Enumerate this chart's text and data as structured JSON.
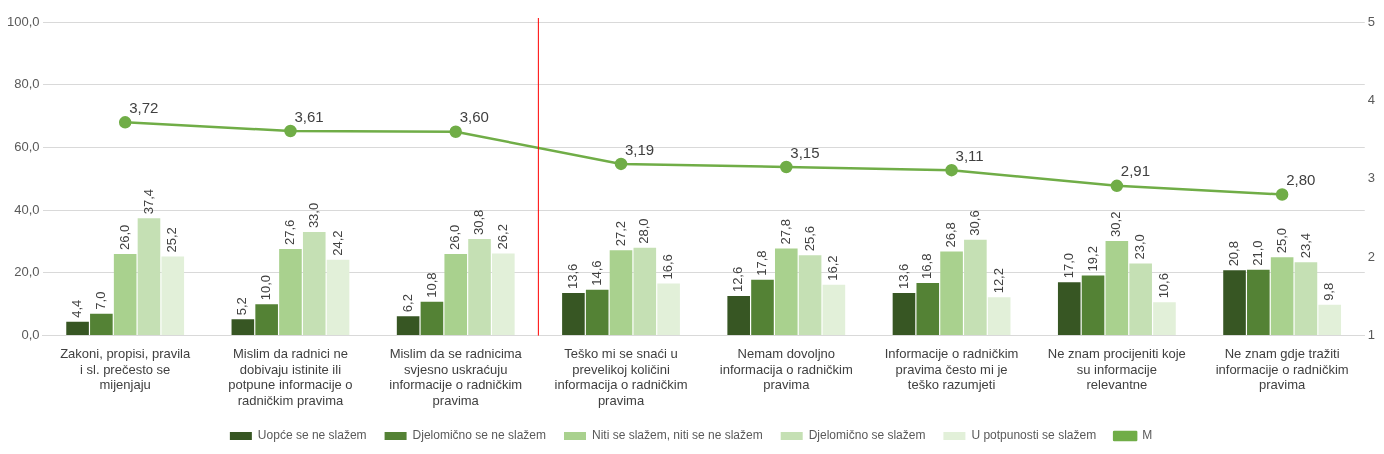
{
  "chart_data": {
    "type": "bar",
    "categories": [
      "Zakoni, propisi, pravila i sl. prečesto se mijenjaju",
      "Mislim da radnici ne dobivaju istinite ili potpune informacije o radničkim pravima",
      "Mislim da se radnicima svjesno uskraćuju informacije o radničkim pravima",
      "Teško mi se snaći u prevelikoj količini informacija o radničkim pravima",
      "Nemam dovoljno informacija o radničkim pravima",
      "Informacije o radničkim pravima često mi je teško razumjeti",
      "Ne znam procijeniti koje su informacije relevantne",
      "Ne znam gdje tražiti informacije o radničkim pravima"
    ],
    "series": [
      {
        "name": "Uopće se ne slažem",
        "color": "#375623",
        "values": [
          4.4,
          5.2,
          6.2,
          13.6,
          12.6,
          13.6,
          17.0,
          20.8
        ],
        "value_labels": [
          "4,4",
          "5,2",
          "6,2",
          "13,6",
          "12,6",
          "13,6",
          "17,0",
          "20,8"
        ]
      },
      {
        "name": "Djelomično se ne slažem",
        "color": "#548235",
        "values": [
          7.0,
          10.0,
          10.8,
          14.6,
          17.8,
          16.8,
          19.2,
          21.0
        ],
        "value_labels": [
          "7,0",
          "10,0",
          "10,8",
          "14,6",
          "17,8",
          "16,8",
          "19,2",
          "21,0"
        ]
      },
      {
        "name": "Niti se slažem, niti se ne slažem",
        "color": "#a9d18e",
        "values": [
          26.0,
          27.6,
          26.0,
          27.2,
          27.8,
          26.8,
          30.2,
          25.0
        ],
        "value_labels": [
          "26,0",
          "27,6",
          "26,0",
          "27,2",
          "27,8",
          "26,8",
          "30,2",
          "25,0"
        ]
      },
      {
        "name": "Djelomično se slažem",
        "color": "#c5e0b4",
        "values": [
          37.4,
          33.0,
          30.8,
          28.0,
          25.6,
          30.6,
          23.0,
          23.4
        ],
        "value_labels": [
          "37,4",
          "33,0",
          "30,8",
          "28,0",
          "25,6",
          "30,6",
          "23,0",
          "23,4"
        ]
      },
      {
        "name": "U potpunosti se slažem",
        "color": "#e2f0d9",
        "values": [
          25.2,
          24.2,
          26.2,
          16.6,
          16.2,
          12.2,
          10.6,
          9.8
        ],
        "value_labels": [
          "25,2",
          "24,2",
          "26,2",
          "16,6",
          "16,2",
          "12,2",
          "10,6",
          "9,8"
        ]
      },
      {
        "name": "M",
        "type": "line",
        "axis": "y2",
        "color": "#70ad47",
        "values": [
          3.72,
          3.61,
          3.6,
          3.19,
          3.15,
          3.11,
          2.91,
          2.8
        ],
        "value_labels": [
          "3,72",
          "3,61",
          "3,60",
          "3,19",
          "3,15",
          "3,11",
          "2,91",
          "2,80"
        ]
      }
    ],
    "ylim": [
      0,
      100
    ],
    "yticks": [
      {
        "value": 0,
        "label": "0,0"
      },
      {
        "value": 20,
        "label": "20,0"
      },
      {
        "value": 40,
        "label": "40,0"
      },
      {
        "value": 60,
        "label": "60,0"
      },
      {
        "value": 80,
        "label": "80,0"
      },
      {
        "value": 100,
        "label": "100,0"
      }
    ],
    "y2lim": [
      1,
      5
    ],
    "y2ticks": [
      1,
      2,
      3,
      4,
      5
    ],
    "ref_lines": [
      {
        "axis": "x",
        "value": "Teško mi se snaći u prevelikoj količini informacija o radničkim pravima",
        "color": "#ff0000"
      }
    ],
    "grid": "y",
    "legend": "bottom",
    "marker": "circle",
    "line_style": "solid"
  }
}
